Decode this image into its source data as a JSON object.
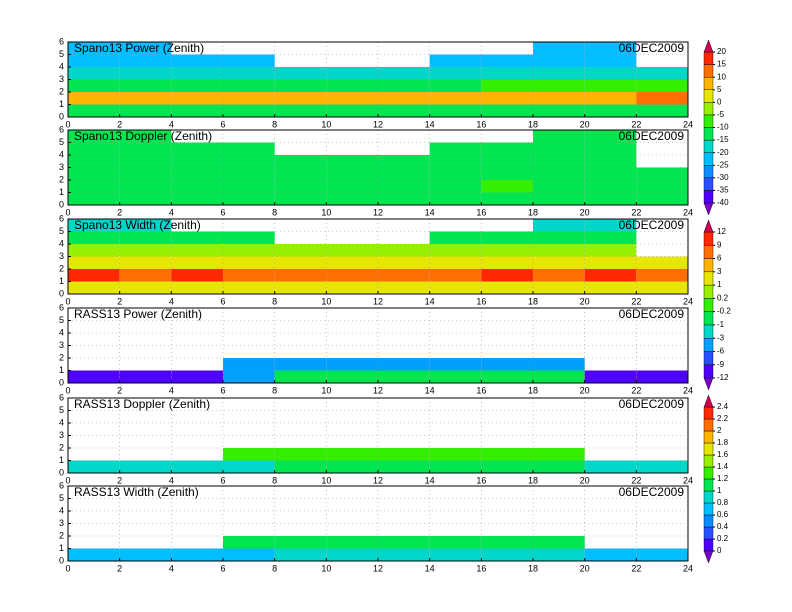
{
  "chart_data": [
    {
      "type": "heatmap",
      "title": "Spano13 Power (Zenith)",
      "date": "06DEC2009",
      "xlim": [
        0,
        24
      ],
      "ylim": [
        0,
        6
      ],
      "xticks": [
        0,
        2,
        4,
        6,
        8,
        10,
        12,
        14,
        16,
        18,
        20,
        22,
        24
      ],
      "yticks": [
        0,
        1,
        2,
        3,
        4,
        5,
        6
      ],
      "grid": true,
      "xbins": [
        0,
        2,
        4,
        6,
        8,
        10,
        12,
        14,
        16,
        18,
        20,
        22,
        24
      ],
      "ybins": [
        0,
        1,
        2,
        3,
        4,
        5,
        6
      ],
      "values": [
        [
          -12,
          -12,
          -12,
          -12,
          -12,
          -12,
          -12,
          -12,
          -12,
          -12,
          -12,
          -12
        ],
        [
          5,
          5,
          5,
          5,
          5,
          5,
          5,
          5,
          8,
          8,
          8,
          10
        ],
        [
          -12,
          -12,
          -12,
          -12,
          -12,
          -12,
          -12,
          -12,
          -10,
          -10,
          -8,
          -8
        ],
        [
          -18,
          -18,
          -18,
          -18,
          -18,
          -18,
          -18,
          -18,
          -18,
          -18,
          -18,
          -20
        ],
        [
          -22,
          -22,
          -24,
          -25,
          null,
          null,
          null,
          -25,
          -24,
          -22,
          -22,
          null
        ],
        [
          -25,
          -25,
          null,
          null,
          null,
          null,
          null,
          null,
          null,
          -25,
          -24,
          null
        ]
      ]
    },
    {
      "type": "heatmap",
      "title": "Spano13 Doppler (Zenith)",
      "date": "06DEC2009",
      "xlim": [
        0,
        24
      ],
      "ylim": [
        0,
        6
      ],
      "xticks": [
        0,
        2,
        4,
        6,
        8,
        10,
        12,
        14,
        16,
        18,
        20,
        22,
        24
      ],
      "yticks": [
        0,
        1,
        2,
        3,
        4,
        5,
        6
      ],
      "grid": true,
      "xbins": [
        0,
        2,
        4,
        6,
        8,
        10,
        12,
        14,
        16,
        18,
        20,
        22,
        24
      ],
      "ybins": [
        0,
        1,
        2,
        3,
        4,
        5,
        6
      ],
      "values": [
        [
          -15,
          -15,
          -15,
          -15,
          -15,
          -15,
          -15,
          -15,
          -15,
          -15,
          -15,
          -15
        ],
        [
          -12,
          -15,
          -15,
          -12,
          -15,
          -15,
          -15,
          -15,
          -10,
          -12,
          -12,
          -15
        ],
        [
          -15,
          -15,
          -12,
          -15,
          -15,
          -15,
          -15,
          -15,
          -12,
          -15,
          -15,
          -15
        ],
        [
          -15,
          -15,
          -15,
          -15,
          -15,
          -15,
          -15,
          -15,
          -15,
          -15,
          -15,
          null
        ],
        [
          -15,
          -15,
          -15,
          -15,
          null,
          null,
          null,
          -15,
          -15,
          -15,
          -15,
          null
        ],
        [
          -15,
          -15,
          null,
          null,
          null,
          null,
          null,
          null,
          null,
          -15,
          -15,
          null
        ]
      ]
    },
    {
      "type": "heatmap",
      "title": "Spano13 Width (Zenith)",
      "date": "06DEC2009",
      "xlim": [
        0,
        24
      ],
      "ylim": [
        0,
        6
      ],
      "xticks": [
        0,
        2,
        4,
        6,
        8,
        10,
        12,
        14,
        16,
        18,
        20,
        22,
        24
      ],
      "yticks": [
        0,
        1,
        2,
        3,
        4,
        5,
        6
      ],
      "grid": true,
      "xbins": [
        0,
        2,
        4,
        6,
        8,
        10,
        12,
        14,
        16,
        18,
        20,
        22,
        24
      ],
      "ybins": [
        0,
        1,
        2,
        3,
        4,
        5,
        6
      ],
      "values": [
        [
          1.5,
          1.5,
          1.5,
          1.5,
          1.5,
          1.5,
          1.5,
          1.5,
          1.5,
          1.5,
          1.5,
          1.5
        ],
        [
          10,
          7,
          10,
          7,
          7,
          7,
          7,
          7,
          10,
          7,
          10,
          7
        ],
        [
          2,
          2,
          2,
          2,
          2,
          2,
          2,
          2,
          2,
          2,
          2,
          2
        ],
        [
          0.5,
          0.5,
          0.5,
          0.5,
          0.5,
          0.5,
          0.5,
          0.5,
          0.5,
          0.5,
          0.5,
          null
        ],
        [
          -0.5,
          -0.5,
          -0.5,
          -0.5,
          null,
          null,
          null,
          -0.5,
          -0.5,
          -0.5,
          -0.5,
          null
        ],
        [
          -2,
          -2,
          null,
          null,
          null,
          null,
          null,
          null,
          null,
          -2,
          -2,
          null
        ]
      ]
    },
    {
      "type": "heatmap",
      "title": "RASS13 Power (Zenith)",
      "date": "06DEC2009",
      "xlim": [
        0,
        24
      ],
      "ylim": [
        0,
        6
      ],
      "xticks": [
        0,
        2,
        4,
        6,
        8,
        10,
        12,
        14,
        16,
        18,
        20,
        22,
        24
      ],
      "yticks": [
        0,
        1,
        2,
        3,
        4,
        5,
        6
      ],
      "grid": true,
      "xbins": [
        0,
        2,
        4,
        6,
        8,
        10,
        12,
        14,
        16,
        18,
        20,
        22,
        24
      ],
      "ybins": [
        0,
        1,
        2,
        3,
        4,
        5,
        6
      ],
      "values": [
        [
          -10,
          -10,
          -10,
          -4,
          -0.5,
          -0.5,
          -0.5,
          -0.5,
          -0.5,
          -0.5,
          -10,
          -10
        ],
        [
          null,
          null,
          null,
          -5,
          -5,
          -5,
          -5,
          -5,
          -5,
          -5,
          null,
          null
        ],
        [
          null,
          null,
          null,
          null,
          null,
          null,
          null,
          null,
          null,
          null,
          null,
          null
        ],
        [
          null,
          null,
          null,
          null,
          null,
          null,
          null,
          null,
          null,
          null,
          null,
          null
        ],
        [
          null,
          null,
          null,
          null,
          null,
          null,
          null,
          null,
          null,
          null,
          null,
          null
        ],
        [
          null,
          null,
          null,
          null,
          null,
          null,
          null,
          null,
          null,
          null,
          null,
          null
        ]
      ]
    },
    {
      "type": "heatmap",
      "title": "RASS13 Doppler (Zenith)",
      "date": "06DEC2009",
      "xlim": [
        0,
        24
      ],
      "ylim": [
        0,
        6
      ],
      "xticks": [
        0,
        2,
        4,
        6,
        8,
        10,
        12,
        14,
        16,
        18,
        20,
        22,
        24
      ],
      "yticks": [
        0,
        1,
        2,
        3,
        4,
        5,
        6
      ],
      "grid": true,
      "xbins": [
        0,
        2,
        4,
        6,
        8,
        10,
        12,
        14,
        16,
        18,
        20,
        22,
        24
      ],
      "ybins": [
        0,
        1,
        2,
        3,
        4,
        5,
        6
      ],
      "values": [
        [
          0.9,
          0.9,
          0.9,
          0.9,
          1.1,
          1.1,
          1.1,
          1.1,
          1.1,
          1.1,
          0.9,
          0.9
        ],
        [
          null,
          null,
          null,
          1.2,
          1.3,
          1.3,
          1.3,
          1.3,
          1.3,
          1.3,
          null,
          null
        ],
        [
          null,
          null,
          null,
          null,
          null,
          null,
          null,
          null,
          null,
          null,
          null,
          null
        ],
        [
          null,
          null,
          null,
          null,
          null,
          null,
          null,
          null,
          null,
          null,
          null,
          null
        ],
        [
          null,
          null,
          null,
          null,
          null,
          null,
          null,
          null,
          null,
          null,
          null,
          null
        ],
        [
          null,
          null,
          null,
          null,
          null,
          null,
          null,
          null,
          null,
          null,
          null,
          null
        ]
      ]
    },
    {
      "type": "heatmap",
      "title": "RASS13 Width (Zenith)",
      "date": "06DEC2009",
      "xlim": [
        0,
        24
      ],
      "ylim": [
        0,
        6
      ],
      "xticks": [
        0,
        2,
        4,
        6,
        8,
        10,
        12,
        14,
        16,
        18,
        20,
        22,
        24
      ],
      "yticks": [
        0,
        1,
        2,
        3,
        4,
        5,
        6
      ],
      "grid": true,
      "xbins": [
        0,
        2,
        4,
        6,
        8,
        10,
        12,
        14,
        16,
        18,
        20,
        22,
        24
      ],
      "ybins": [
        0,
        1,
        2,
        3,
        4,
        5,
        6
      ],
      "values": [
        [
          0.7,
          0.7,
          0.7,
          0.7,
          0.9,
          0.9,
          0.9,
          0.9,
          0.9,
          0.9,
          0.7,
          0.7
        ],
        [
          null,
          null,
          null,
          1.1,
          1.1,
          1.1,
          1.1,
          1.1,
          1.1,
          1.1,
          null,
          null
        ],
        [
          null,
          null,
          null,
          null,
          null,
          null,
          null,
          null,
          null,
          null,
          null,
          null
        ],
        [
          null,
          null,
          null,
          null,
          null,
          null,
          null,
          null,
          null,
          null,
          null,
          null
        ],
        [
          null,
          null,
          null,
          null,
          null,
          null,
          null,
          null,
          null,
          null,
          null,
          null
        ],
        [
          null,
          null,
          null,
          null,
          null,
          null,
          null,
          null,
          null,
          null,
          null,
          null
        ]
      ]
    }
  ],
  "colorbars": [
    {
      "ticks": [
        -40,
        -35,
        -30,
        -25,
        -20,
        -15,
        -10,
        -5,
        0,
        5,
        10,
        15,
        20
      ],
      "colors": [
        "#7800c8",
        "#5000ff",
        "#2850ff",
        "#0a8cff",
        "#00beff",
        "#00d7c8",
        "#00e650",
        "#32f000",
        "#96f000",
        "#e6e600",
        "#ffb400",
        "#ff6e00",
        "#ff2800",
        "#d20050"
      ]
    },
    {
      "ticks": [
        -12,
        -9,
        -6,
        -3,
        -1,
        -0.2,
        0.2,
        1,
        3,
        6,
        9,
        12
      ],
      "colors": [
        "#7800c8",
        "#5000ff",
        "#2850ff",
        "#00a0ff",
        "#00d7c8",
        "#00e650",
        "#32f000",
        "#96f000",
        "#e6e600",
        "#ffb400",
        "#ff6e00",
        "#ff2800",
        "#d20050"
      ]
    },
    {
      "ticks": [
        0,
        0.2,
        0.4,
        0.6,
        0.8,
        1,
        1.2,
        1.4,
        1.6,
        1.8,
        2,
        2.2,
        2.4
      ],
      "colors": [
        "#7800c8",
        "#5000ff",
        "#2850ff",
        "#0a8cff",
        "#00beff",
        "#00d7c8",
        "#00e650",
        "#32f000",
        "#96f000",
        "#e6e600",
        "#ffb400",
        "#ff6e00",
        "#ff2800",
        "#d20050"
      ]
    }
  ]
}
